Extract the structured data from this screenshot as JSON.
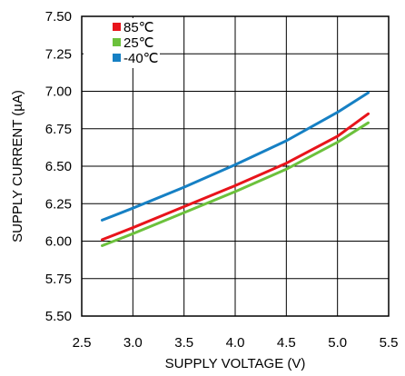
{
  "chart_data": {
    "type": "line",
    "title": "",
    "xlabel": "SUPPLY VOLTAGE (V)",
    "ylabel": "SUPPLY CURRENT (µA)",
    "xlim": [
      2.5,
      5.5
    ],
    "ylim": [
      5.5,
      7.5
    ],
    "x_ticks": [
      "2.5",
      "3.0",
      "3.5",
      "4.0",
      "4.5",
      "5.0",
      "5.5"
    ],
    "y_ticks": [
      "5.50",
      "5.75",
      "6.00",
      "6.25",
      "6.50",
      "6.75",
      "7.00",
      "7.25",
      "7.50"
    ],
    "grid": true,
    "legend_position": "top-left",
    "series": [
      {
        "name": "85℃",
        "color": "#e8141b",
        "x": [
          2.7,
          3.0,
          3.5,
          4.0,
          4.5,
          5.0,
          5.3
        ],
        "y": [
          6.01,
          6.09,
          6.23,
          6.37,
          6.52,
          6.7,
          6.85
        ]
      },
      {
        "name": "25℃",
        "color": "#6cc13c",
        "x": [
          2.7,
          3.0,
          3.5,
          4.0,
          4.5,
          5.0,
          5.3
        ],
        "y": [
          5.97,
          6.05,
          6.19,
          6.33,
          6.48,
          6.66,
          6.79
        ]
      },
      {
        "name": "-40℃",
        "color": "#1680c4",
        "x": [
          2.7,
          3.0,
          3.5,
          4.0,
          4.5,
          5.0,
          5.3
        ],
        "y": [
          6.14,
          6.22,
          6.36,
          6.51,
          6.67,
          6.86,
          6.99
        ]
      }
    ]
  }
}
